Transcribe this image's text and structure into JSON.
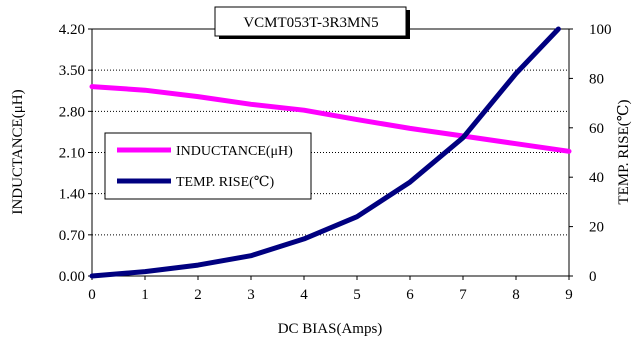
{
  "chart_data": {
    "type": "line",
    "title": "VCMT053T-3R3MN5",
    "xlabel": "DC BIAS(Amps)",
    "ylabel_left": "INDUCTANCE(μH)",
    "ylabel_right": "TEMP. RISE(℃)",
    "x_ticks": [
      "0",
      "1",
      "2",
      "3",
      "4",
      "5",
      "6",
      "7",
      "8",
      "9"
    ],
    "y_left_ticks": [
      "0.00",
      "0.70",
      "1.40",
      "2.10",
      "2.80",
      "3.50",
      "4.20"
    ],
    "y_right_ticks": [
      "0",
      "20",
      "40",
      "60",
      "80",
      "100"
    ],
    "xlim": [
      0,
      9
    ],
    "ylim_left": [
      0,
      4.2
    ],
    "ylim_right": [
      0,
      100
    ],
    "grid": "horizontal",
    "legend_position": "left-middle",
    "series": [
      {
        "name": "INDUCTANCE(μH)",
        "axis": "left",
        "color": "#ff00ff",
        "x": [
          0,
          1,
          2,
          3,
          4,
          5,
          6,
          7,
          8,
          9
        ],
        "y": [
          3.22,
          3.16,
          3.05,
          2.92,
          2.82,
          2.66,
          2.51,
          2.38,
          2.25,
          2.12
        ]
      },
      {
        "name": "TEMP. RISE(℃)",
        "axis": "right",
        "color": "#000080",
        "x": [
          0,
          1,
          2,
          3,
          4,
          5,
          6,
          7,
          8,
          8.8
        ],
        "y": [
          0,
          1.8,
          4.4,
          8.2,
          15,
          24,
          38,
          56,
          82,
          100
        ]
      }
    ]
  }
}
